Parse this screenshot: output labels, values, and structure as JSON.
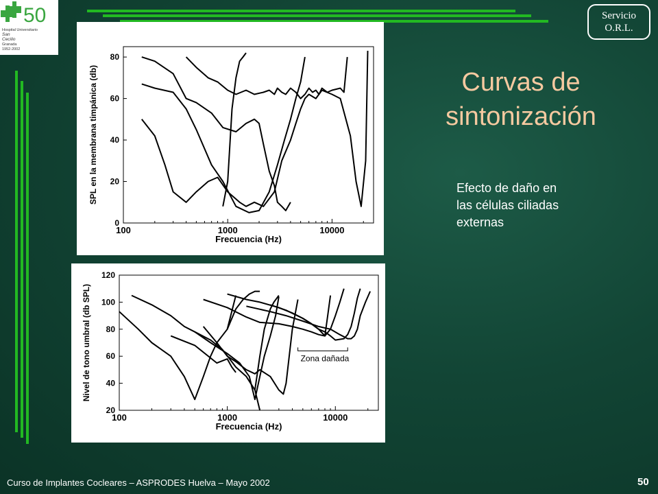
{
  "logo": {
    "number": "50",
    "hospital_line": "Hospital Universitario",
    "name_line1": "San",
    "name_line2": "Cecilio",
    "city": "Granada",
    "years": "1952-2002",
    "brand_color": "#3aa640"
  },
  "servicio": {
    "line1": "Servicio",
    "line2": "O.R.L."
  },
  "title": {
    "line1": "Curvas de",
    "line2": "sintonización"
  },
  "subtitle": [
    "Efecto de daño en",
    "las células ciliadas",
    "externas"
  ],
  "footer": {
    "text": "Curso de Implantes Cocleares – ASPRODES Huelva – Mayo 2002",
    "page_number": "50"
  },
  "colors": {
    "background": "#124535",
    "accent_lines": "#22b922",
    "title": "#f5c9a0",
    "text": "#ffffff"
  },
  "chart_data": [
    {
      "type": "line",
      "xlabel": "Frecuencia (Hz)",
      "ylabel": "SPL en la membrana timpánica (db)",
      "xscale": "log",
      "xlim": [
        100,
        25000
      ],
      "ylim": [
        0,
        85
      ],
      "x_ticks": [
        {
          "value": 100,
          "label": "100"
        },
        {
          "value": 1000,
          "label": "1000"
        },
        {
          "value": 10000,
          "label": "10000"
        }
      ],
      "y_ticks": [
        {
          "value": 0,
          "label": "0"
        },
        {
          "value": 20,
          "label": "20"
        },
        {
          "value": 40,
          "label": "40"
        },
        {
          "value": 60,
          "label": "60"
        },
        {
          "value": 80,
          "label": "80"
        }
      ],
      "series": [
        {
          "x": [
            150,
            200,
            250,
            300,
            400,
            500,
            650,
            800,
            1000,
            1300,
            1500,
            1800,
            2200,
            2800,
            3300,
            4000,
            4500,
            5000,
            5500,
            6000,
            7000,
            8000,
            10000,
            12000,
            15000,
            17000,
            19000,
            21000,
            22000
          ],
          "y": [
            50,
            42,
            28,
            15,
            10,
            15,
            20,
            22,
            15,
            10,
            8,
            10,
            8,
            15,
            30,
            40,
            48,
            55,
            60,
            62,
            60,
            64,
            62,
            60,
            42,
            20,
            8,
            30,
            83
          ]
        },
        {
          "x": [
            150,
            200,
            300,
            400,
            500,
            700,
            900,
            1200,
            1600,
            2000,
            2500,
            3000,
            3500,
            4000,
            4500,
            5000,
            5500
          ],
          "y": [
            67,
            65,
            63,
            55,
            45,
            28,
            20,
            8,
            5,
            6,
            15,
            28,
            40,
            50,
            60,
            68,
            80
          ]
        },
        {
          "x": [
            150,
            200,
            300,
            400,
            500,
            700,
            900,
            1200,
            1500,
            1800,
            2000,
            2200,
            2500,
            2800,
            3000,
            3300,
            3600,
            4000
          ],
          "y": [
            80,
            78,
            72,
            60,
            58,
            53,
            46,
            44,
            48,
            50,
            48,
            38,
            25,
            18,
            10,
            8,
            6,
            10
          ]
        },
        {
          "x": [
            400,
            500,
            650,
            800,
            1000,
            1200,
            1500,
            1800,
            2200,
            2500,
            2800,
            3000,
            3300,
            3600,
            4000,
            4500,
            5000,
            5500,
            6000,
            6500,
            7000,
            7500,
            8000,
            9000,
            10000,
            12000,
            13000,
            14000
          ],
          "y": [
            80,
            75,
            70,
            68,
            64,
            62,
            64,
            62,
            63,
            64,
            62,
            65,
            63,
            62,
            65,
            63,
            60,
            62,
            65,
            63,
            64,
            62,
            65,
            63,
            64,
            65,
            63,
            80
          ]
        },
        {
          "x": [
            900,
            1000,
            1100,
            1200,
            1300,
            1400,
            1500
          ],
          "y": [
            8,
            20,
            55,
            70,
            78,
            80,
            82
          ]
        }
      ]
    },
    {
      "type": "line",
      "xlabel": "Frecuencia (Hz)",
      "ylabel": "Nivel de tono umbral (db SPL)",
      "xscale": "log",
      "xlim": [
        100,
        25000
      ],
      "ylim": [
        20,
        120
      ],
      "x_ticks": [
        {
          "value": 100,
          "label": "100"
        },
        {
          "value": 1000,
          "label": "1000"
        },
        {
          "value": 10000,
          "label": "10000"
        }
      ],
      "y_ticks": [
        {
          "value": 20,
          "label": "20"
        },
        {
          "value": 40,
          "label": "40"
        },
        {
          "value": 60,
          "label": "60"
        },
        {
          "value": 80,
          "label": "80"
        },
        {
          "value": 100,
          "label": "100"
        },
        {
          "value": 120,
          "label": "120"
        }
      ],
      "annotation": {
        "text": "Zona dañada",
        "x_range": [
          4500,
          13000
        ],
        "y": 64
      },
      "series": [
        {
          "x": [
            100,
            150,
            200,
            300,
            400,
            500,
            600,
            700,
            800,
            1000,
            1200
          ],
          "y": [
            93,
            80,
            70,
            60,
            45,
            28,
            45,
            60,
            70,
            80,
            105
          ]
        },
        {
          "x": [
            130,
            200,
            300,
            400,
            500,
            700,
            900,
            1200,
            1500,
            1800,
            2000
          ],
          "y": [
            105,
            98,
            90,
            82,
            78,
            72,
            65,
            52,
            45,
            35,
            20
          ]
        },
        {
          "x": [
            500,
            700,
            1000,
            1300,
            1600,
            1800,
            2000,
            2200,
            2500,
            2800,
            3000
          ],
          "y": [
            78,
            70,
            62,
            55,
            45,
            28,
            45,
            60,
            75,
            90,
            104
          ]
        },
        {
          "x": [
            600,
            800,
            1000,
            1200,
            1500,
            1800,
            2000,
            2500,
            3000,
            3300,
            3500,
            4000,
            4500
          ],
          "y": [
            82,
            70,
            60,
            56,
            50,
            47,
            50,
            45,
            35,
            32,
            40,
            80,
            102
          ]
        },
        {
          "x": [
            600,
            1000,
            1500,
            2000,
            3000,
            4000,
            5000,
            6000,
            7000,
            8000,
            9000,
            10000,
            11000,
            12000
          ],
          "y": [
            102,
            96,
            89,
            85,
            84,
            82,
            80,
            78,
            76,
            75,
            80,
            90,
            100,
            110
          ]
        },
        {
          "x": [
            1000,
            1500,
            2000,
            3000,
            4000,
            5000,
            6000,
            7000,
            8000,
            9000,
            10000,
            12000,
            13000,
            14000,
            15000,
            16000,
            17000
          ],
          "y": [
            106,
            102,
            100,
            96,
            92,
            88,
            84,
            80,
            78,
            75,
            72,
            73,
            76,
            82,
            92,
            103,
            110
          ]
        },
        {
          "x": [
            1500,
            2500,
            3500,
            5000,
            7000,
            9000,
            11000,
            13000,
            14000,
            15000,
            16000,
            17000,
            19000,
            21000
          ],
          "y": [
            97,
            93,
            90,
            86,
            82,
            80,
            76,
            73,
            73,
            75,
            80,
            90,
            100,
            108
          ]
        },
        {
          "x": [
            2500,
            3500,
            5000,
            6000,
            7000,
            8000,
            8500,
            9000
          ],
          "y": [
            98,
            94,
            88,
            84,
            80,
            75,
            90,
            105
          ]
        },
        {
          "x": [
            300,
            500,
            800,
            1000,
            1100,
            1200
          ],
          "y": [
            75,
            68,
            55,
            58,
            52,
            48
          ]
        },
        {
          "x": [
            1000,
            1200,
            1400,
            1600,
            1800,
            2000
          ],
          "y": [
            80,
            95,
            102,
            106,
            108,
            108
          ]
        },
        {
          "x": [
            1800,
            2000,
            2200,
            2500,
            2700,
            3000
          ],
          "y": [
            35,
            60,
            80,
            95,
            100,
            105
          ]
        }
      ]
    }
  ]
}
